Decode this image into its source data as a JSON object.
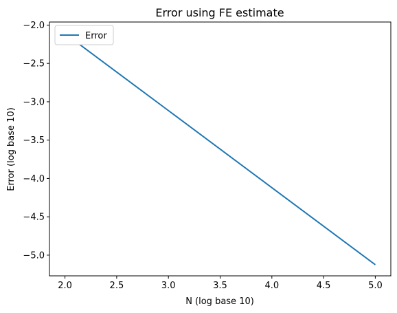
{
  "chart_data": {
    "type": "line",
    "title": "Error using FE estimate",
    "xlabel": "N (log base 10)",
    "ylabel": "Error (log base 10)",
    "xlim": [
      1.85,
      5.15
    ],
    "ylim": [
      -5.27,
      -1.96
    ],
    "xticks": [
      2.0,
      2.5,
      3.0,
      3.5,
      4.0,
      4.5,
      5.0
    ],
    "xtick_labels": [
      "2.0",
      "2.5",
      "3.0",
      "3.5",
      "4.0",
      "4.5",
      "5.0"
    ],
    "yticks": [
      -2.0,
      -2.5,
      -3.0,
      -3.5,
      -4.0,
      -4.5,
      -5.0
    ],
    "ytick_labels": [
      "−2.0",
      "−2.5",
      "−3.0",
      "−3.5",
      "−4.0",
      "−4.5",
      "−5.0"
    ],
    "grid": false,
    "legend_position": "upper-left",
    "series": [
      {
        "name": "Error",
        "color": "#1f77b4",
        "x": [
          2.0,
          3.0,
          4.0,
          5.0
        ],
        "y": [
          -2.11,
          -3.115,
          -4.12,
          -5.125
        ]
      }
    ]
  }
}
